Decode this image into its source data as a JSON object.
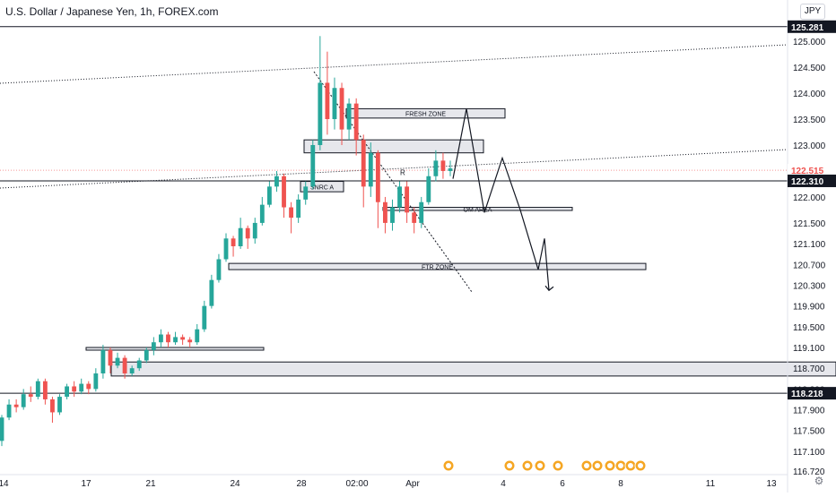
{
  "header": {
    "title": "U.S. Dollar / Japanese Yen, 1h, FOREX.com",
    "currency_button": "JPY"
  },
  "footer": {
    "settings_icon": "gear-icon"
  },
  "colors": {
    "up": "#26a69a",
    "down": "#ef5350",
    "line": "#131722",
    "zone_fill": "#d1d4dc",
    "current_price_badge": "#ef5350"
  },
  "chart_data": {
    "type": "candlestick",
    "title": "U.S. Dollar / Japanese Yen, 1h, FOREX.com",
    "xlabel": "",
    "ylabel": "",
    "y_scale": "linear",
    "ylim": [
      116.6,
      125.5
    ],
    "y_ticks": [
      "125.000",
      "124.500",
      "124.000",
      "123.500",
      "123.000",
      "122.500",
      "122.000",
      "121.500",
      "121.100",
      "120.700",
      "120.300",
      "119.900",
      "119.500",
      "119.100",
      "118.700",
      "118.300",
      "117.900",
      "117.500",
      "117.100",
      "116.720"
    ],
    "x_ticks": [
      "14",
      "17",
      "21",
      "24",
      "28",
      "02:00",
      "Apr",
      "4",
      "6",
      "8",
      "11",
      "13"
    ],
    "price_labels": [
      {
        "label": "125.281",
        "value": 125.281,
        "kind": "level"
      },
      {
        "label": "122.515",
        "value": 122.515,
        "kind": "current"
      },
      {
        "label": "122.310",
        "value": 122.31,
        "kind": "level"
      },
      {
        "label": "118.218",
        "value": 118.218,
        "kind": "level"
      }
    ],
    "horizontal_levels": [
      125.281,
      122.31,
      118.218
    ],
    "zones": [
      {
        "label": "FRESH ZONE",
        "top": 123.7,
        "bottom": 123.52
      },
      {
        "label": "",
        "top": 123.1,
        "bottom": 122.85
      },
      {
        "label": "SNRC A",
        "top": 122.3,
        "bottom": 122.1
      },
      {
        "label": "OM AREA",
        "top": 121.8,
        "bottom": 121.74
      },
      {
        "label": "FTR ZONE",
        "top": 120.72,
        "bottom": 120.6
      },
      {
        "label": "",
        "top": 119.1,
        "bottom": 119.05
      },
      {
        "label": "",
        "top": 118.82,
        "bottom": 118.55
      }
    ],
    "annotations": [
      {
        "label": "R",
        "value": 122.35
      }
    ],
    "candles": [
      [
        117.3,
        117.75,
        117.2,
        117.8
      ],
      [
        117.75,
        118.0,
        117.7,
        118.1
      ],
      [
        118.0,
        117.95,
        117.85,
        118.1
      ],
      [
        117.95,
        118.2,
        117.9,
        118.3
      ],
      [
        118.2,
        118.15,
        118.05,
        118.35
      ],
      [
        118.15,
        118.45,
        118.1,
        118.5
      ],
      [
        118.45,
        118.1,
        118.0,
        118.5
      ],
      [
        118.1,
        117.85,
        117.65,
        118.15
      ],
      [
        117.85,
        118.15,
        117.8,
        118.2
      ],
      [
        118.15,
        118.35,
        118.1,
        118.4
      ],
      [
        118.35,
        118.25,
        118.15,
        118.45
      ],
      [
        118.25,
        118.4,
        118.2,
        118.5
      ],
      [
        118.4,
        118.3,
        118.2,
        118.45
      ],
      [
        118.3,
        118.6,
        118.25,
        118.7
      ],
      [
        118.6,
        119.05,
        118.5,
        119.15
      ],
      [
        119.05,
        118.75,
        118.6,
        119.1
      ],
      [
        118.75,
        118.9,
        118.7,
        119.0
      ],
      [
        118.9,
        118.6,
        118.5,
        118.95
      ],
      [
        118.6,
        118.7,
        118.55,
        118.75
      ],
      [
        118.7,
        118.85,
        118.65,
        118.9
      ],
      [
        118.85,
        119.05,
        118.8,
        119.1
      ],
      [
        119.05,
        119.2,
        118.95,
        119.3
      ],
      [
        119.2,
        119.35,
        119.1,
        119.45
      ],
      [
        119.35,
        119.2,
        119.1,
        119.4
      ],
      [
        119.2,
        119.3,
        119.15,
        119.4
      ],
      [
        119.3,
        119.25,
        119.15,
        119.35
      ],
      [
        119.25,
        119.2,
        119.1,
        119.3
      ],
      [
        119.2,
        119.45,
        119.15,
        119.55
      ],
      [
        119.45,
        119.9,
        119.4,
        120.0
      ],
      [
        119.9,
        120.4,
        119.85,
        120.5
      ],
      [
        120.4,
        120.8,
        120.35,
        120.9
      ],
      [
        120.8,
        121.2,
        120.75,
        121.3
      ],
      [
        121.2,
        121.05,
        120.85,
        121.25
      ],
      [
        121.05,
        121.4,
        121.0,
        121.6
      ],
      [
        121.4,
        121.2,
        121.0,
        121.45
      ],
      [
        121.2,
        121.5,
        121.1,
        121.6
      ],
      [
        121.5,
        121.85,
        121.45,
        122.0
      ],
      [
        121.85,
        122.2,
        121.8,
        122.3
      ],
      [
        122.2,
        122.4,
        122.1,
        122.5
      ],
      [
        122.4,
        121.8,
        121.6,
        122.45
      ],
      [
        121.8,
        121.6,
        121.3,
        121.9
      ],
      [
        121.6,
        121.95,
        121.5,
        122.05
      ],
      [
        121.95,
        122.2,
        121.85,
        122.3
      ],
      [
        122.2,
        123.0,
        122.15,
        123.1
      ],
      [
        123.0,
        124.2,
        122.9,
        125.1
      ],
      [
        124.2,
        123.5,
        123.2,
        124.8
      ],
      [
        123.5,
        124.1,
        123.3,
        124.3
      ],
      [
        124.1,
        123.3,
        123.0,
        124.2
      ],
      [
        123.3,
        123.8,
        123.1,
        123.9
      ],
      [
        123.8,
        123.1,
        122.8,
        123.9
      ],
      [
        123.1,
        122.2,
        121.8,
        123.2
      ],
      [
        122.2,
        122.85,
        122.0,
        123.05
      ],
      [
        122.85,
        121.9,
        121.4,
        122.9
      ],
      [
        121.9,
        121.5,
        121.3,
        122.0
      ],
      [
        121.5,
        121.8,
        121.35,
        121.95
      ],
      [
        121.8,
        122.2,
        121.7,
        122.3
      ],
      [
        122.2,
        121.7,
        121.5,
        122.3
      ],
      [
        121.7,
        121.5,
        121.3,
        121.8
      ],
      [
        121.5,
        121.9,
        121.4,
        122.0
      ],
      [
        121.9,
        122.4,
        121.85,
        122.55
      ],
      [
        122.4,
        122.7,
        122.3,
        122.9
      ],
      [
        122.7,
        122.5,
        122.35,
        122.85
      ],
      [
        122.5,
        122.55,
        122.4,
        122.7
      ]
    ],
    "projection_path": [
      [
        0,
        122.4
      ],
      [
        6,
        123.6
      ],
      [
        12,
        122.3
      ],
      [
        18,
        121.7
      ],
      [
        24,
        122.6
      ],
      [
        30,
        121.7
      ],
      [
        36,
        121.2
      ],
      [
        42,
        120.6
      ],
      [
        48,
        121.0
      ],
      [
        54,
        120.2
      ]
    ],
    "trend_lines": [
      {
        "from": [
          124.8
        ],
        "to": [
          120.2
        ],
        "style": "dotted"
      }
    ]
  }
}
